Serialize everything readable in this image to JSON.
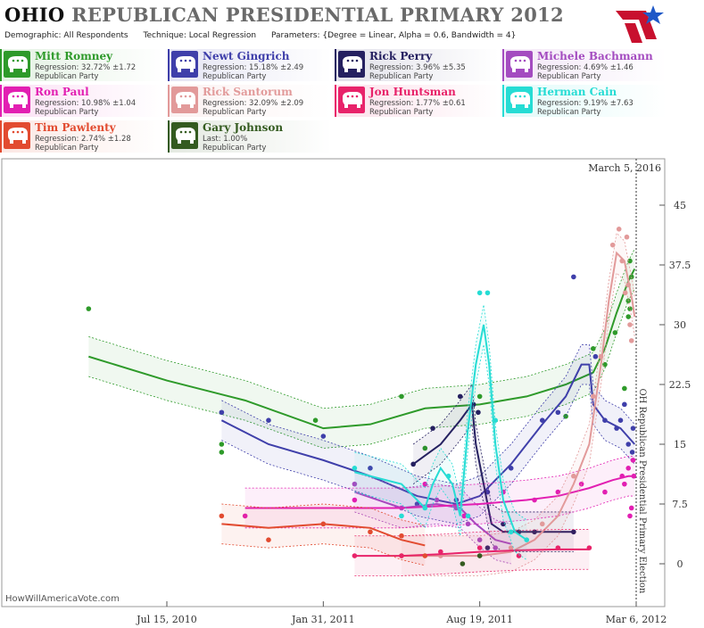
{
  "header": {
    "title_a": "OHIO",
    "title_b": "REPUBLICAN PRESIDENTIAL PRIMARY 2012",
    "demographic": "Demographic: All Respondents",
    "technique": "Technique: Local Regression",
    "parameters": "Parameters: {Degree = Linear, Alpha = 0.6, Bandwidth = 4}",
    "logo_icon": "flag-star-logo"
  },
  "candidates": [
    {
      "name": "Mitt Romney",
      "line1": "Regression: 32.72% ±1.72",
      "line2": "Republican Party",
      "color": "#2e9a2a"
    },
    {
      "name": "Newt Gingrich",
      "line1": "Regression: 15.18% ±2.49",
      "line2": "Republican Party",
      "color": "#3f3faa"
    },
    {
      "name": "Rick Perry",
      "line1": "Regression: 3.96% ±5.35",
      "line2": "Republican Party",
      "color": "#252060"
    },
    {
      "name": "Michele Bachmann",
      "line1": "Regression: 4.69% ±1.46",
      "line2": "Republican Party",
      "color": "#a44cc0"
    },
    {
      "name": "Ron Paul",
      "line1": "Regression: 10.98% ±1.04",
      "line2": "Republican Party",
      "color": "#e21fb2"
    },
    {
      "name": "Rick Santorum",
      "line1": "Regression: 32.09% ±2.09",
      "line2": "Republican Party",
      "color": "#e29a9a"
    },
    {
      "name": "Jon Huntsman",
      "line1": "Regression: 1.77% ±0.61",
      "line2": "Republican Party",
      "color": "#e8236a"
    },
    {
      "name": "Herman Cain",
      "line1": "Regression: 9.19% ±7.63",
      "line2": "Republican Party",
      "color": "#26dcd4"
    },
    {
      "name": "Tim Pawlenty",
      "line1": "Regression: 2.74% ±1.28",
      "line2": "Republican Party",
      "color": "#e24b30"
    },
    {
      "name": "Gary Johnson",
      "line1": "Last: 1.00%",
      "line2": "Republican Party",
      "color": "#345b20"
    }
  ],
  "chart_data": {
    "type": "line",
    "today_label": "March 5, 2016",
    "election_label": "OH Republican Presidential Primary Election",
    "watermark": "HowWillAmericaVote.com",
    "x_ticks": [
      "Jul 15, 2010",
      "Jan 31, 2011",
      "Aug 19, 2011",
      "Mar 6, 2012"
    ],
    "y_ticks": [
      "0",
      "7.5",
      "15",
      "22.5",
      "30",
      "37.5",
      "45"
    ],
    "ylim": [
      -4,
      48
    ],
    "xlim_days": [
      -100,
      610
    ],
    "x_tick_days": [
      0,
      200,
      400,
      600
    ],
    "grid": false,
    "series": [
      {
        "name": "Mitt Romney",
        "color": "#2e9a2a",
        "line": [
          [
            -100,
            26
          ],
          [
            0,
            23
          ],
          [
            100,
            20.5
          ],
          [
            200,
            17
          ],
          [
            260,
            17.5
          ],
          [
            330,
            19.5
          ],
          [
            400,
            20
          ],
          [
            460,
            21
          ],
          [
            510,
            22.5
          ],
          [
            545,
            24
          ],
          [
            560,
            27
          ],
          [
            575,
            31.5
          ],
          [
            590,
            35.5
          ],
          [
            598,
            37
          ]
        ],
        "points": [
          [
            -100,
            32
          ],
          [
            70,
            14
          ],
          [
            70,
            15
          ],
          [
            190,
            18
          ],
          [
            300,
            21
          ],
          [
            330,
            14.5
          ],
          [
            400,
            21
          ],
          [
            510,
            18.5
          ],
          [
            545,
            27
          ],
          [
            560,
            25
          ],
          [
            573,
            29
          ],
          [
            585,
            22
          ],
          [
            590,
            31
          ],
          [
            590,
            33
          ],
          [
            592,
            38
          ],
          [
            592,
            32
          ],
          [
            594,
            36
          ]
        ]
      },
      {
        "name": "Newt Gingrich",
        "color": "#3f3faa",
        "line": [
          [
            70,
            18
          ],
          [
            130,
            15
          ],
          [
            200,
            13
          ],
          [
            260,
            11
          ],
          [
            320,
            8.5
          ],
          [
            370,
            7.5
          ],
          [
            400,
            8.5
          ],
          [
            440,
            12.5
          ],
          [
            480,
            17.5
          ],
          [
            510,
            21
          ],
          [
            530,
            25
          ],
          [
            540,
            25
          ],
          [
            545,
            20
          ],
          [
            560,
            18
          ],
          [
            580,
            17
          ],
          [
            598,
            15
          ]
        ],
        "points": [
          [
            70,
            19
          ],
          [
            130,
            18
          ],
          [
            200,
            16
          ],
          [
            260,
            12
          ],
          [
            320,
            7.5
          ],
          [
            370,
            8
          ],
          [
            410,
            9
          ],
          [
            440,
            12
          ],
          [
            480,
            18
          ],
          [
            500,
            19
          ],
          [
            520,
            36
          ],
          [
            548,
            26
          ],
          [
            560,
            18
          ],
          [
            575,
            17
          ],
          [
            580,
            18
          ],
          [
            585,
            20
          ],
          [
            590,
            15
          ],
          [
            595,
            14
          ],
          [
            596,
            17
          ]
        ]
      },
      {
        "name": "Rick Perry",
        "color": "#252060",
        "line": [
          [
            315,
            12.5
          ],
          [
            350,
            15
          ],
          [
            375,
            18
          ],
          [
            390,
            20
          ],
          [
            395,
            15
          ],
          [
            405,
            10
          ],
          [
            415,
            5
          ],
          [
            430,
            4
          ],
          [
            450,
            4
          ],
          [
            480,
            4
          ],
          [
            520,
            4
          ]
        ],
        "points": [
          [
            315,
            12.5
          ],
          [
            340,
            17
          ],
          [
            375,
            21
          ],
          [
            392,
            20
          ],
          [
            398,
            19
          ],
          [
            410,
            2
          ],
          [
            430,
            5
          ],
          [
            450,
            4
          ],
          [
            470,
            4
          ],
          [
            520,
            4
          ]
        ]
      },
      {
        "name": "Michele Bachmann",
        "color": "#a44cc0",
        "line": [
          [
            240,
            9
          ],
          [
            300,
            7
          ],
          [
            345,
            7.5
          ],
          [
            375,
            7
          ],
          [
            395,
            5
          ],
          [
            420,
            3
          ],
          [
            440,
            2.5
          ]
        ],
        "points": [
          [
            240,
            10
          ],
          [
            300,
            7
          ],
          [
            345,
            8
          ],
          [
            370,
            7
          ],
          [
            385,
            5
          ],
          [
            400,
            3
          ],
          [
            420,
            2
          ]
        ]
      },
      {
        "name": "Ron Paul",
        "color": "#e21fb2",
        "line": [
          [
            100,
            7
          ],
          [
            200,
            7
          ],
          [
            300,
            7
          ],
          [
            400,
            7.5
          ],
          [
            460,
            8
          ],
          [
            500,
            8.5
          ],
          [
            540,
            9.5
          ],
          [
            570,
            10.5
          ],
          [
            590,
            11
          ],
          [
            598,
            11
          ]
        ],
        "points": [
          [
            100,
            6
          ],
          [
            240,
            8
          ],
          [
            330,
            10
          ],
          [
            380,
            6
          ],
          [
            430,
            9
          ],
          [
            470,
            8
          ],
          [
            500,
            9
          ],
          [
            530,
            10
          ],
          [
            560,
            9
          ],
          [
            582,
            11
          ],
          [
            585,
            10
          ],
          [
            590,
            12
          ],
          [
            592,
            6
          ],
          [
            594,
            7
          ],
          [
            596,
            13
          ],
          [
            597,
            11
          ]
        ]
      },
      {
        "name": "Rick Santorum",
        "color": "#e29a9a",
        "line": [
          [
            300,
            1
          ],
          [
            350,
            1
          ],
          [
            400,
            1
          ],
          [
            440,
            1.5
          ],
          [
            470,
            3
          ],
          [
            500,
            6
          ],
          [
            520,
            10
          ],
          [
            540,
            15
          ],
          [
            555,
            25
          ],
          [
            565,
            33
          ],
          [
            575,
            39
          ],
          [
            585,
            38
          ],
          [
            595,
            33
          ],
          [
            598,
            31
          ]
        ],
        "points": [
          [
            300,
            1
          ],
          [
            350,
            1
          ],
          [
            400,
            1
          ],
          [
            440,
            2
          ],
          [
            480,
            5
          ],
          [
            520,
            11
          ],
          [
            545,
            21
          ],
          [
            555,
            26
          ],
          [
            570,
            40
          ],
          [
            578,
            42
          ],
          [
            582,
            38
          ],
          [
            586,
            34
          ],
          [
            588,
            41
          ],
          [
            590,
            35
          ],
          [
            592,
            30
          ],
          [
            594,
            28
          ]
        ]
      },
      {
        "name": "Jon Huntsman",
        "color": "#e8236a",
        "line": [
          [
            240,
            1
          ],
          [
            300,
            1
          ],
          [
            350,
            1.2
          ],
          [
            400,
            1.5
          ],
          [
            450,
            1.7
          ],
          [
            500,
            1.8
          ],
          [
            540,
            1.8
          ]
        ],
        "points": [
          [
            240,
            1
          ],
          [
            300,
            1
          ],
          [
            350,
            1.5
          ],
          [
            400,
            2
          ],
          [
            450,
            1
          ],
          [
            500,
            2
          ],
          [
            540,
            2
          ]
        ]
      },
      {
        "name": "Herman Cain",
        "color": "#26dcd4",
        "line": [
          [
            240,
            11.5
          ],
          [
            300,
            10
          ],
          [
            330,
            7
          ],
          [
            340,
            10
          ],
          [
            350,
            12
          ],
          [
            365,
            10
          ],
          [
            375,
            6
          ],
          [
            385,
            17
          ],
          [
            395,
            25
          ],
          [
            405,
            30
          ],
          [
            412,
            25
          ],
          [
            420,
            15
          ],
          [
            430,
            8
          ],
          [
            445,
            4
          ],
          [
            460,
            3
          ]
        ],
        "points": [
          [
            240,
            12
          ],
          [
            300,
            6
          ],
          [
            330,
            7
          ],
          [
            360,
            11
          ],
          [
            385,
            6
          ],
          [
            400,
            34
          ],
          [
            410,
            34
          ],
          [
            420,
            18
          ],
          [
            440,
            4
          ],
          [
            460,
            3
          ]
        ]
      },
      {
        "name": "Tim Pawlenty",
        "color": "#e24b30",
        "line": [
          [
            70,
            5
          ],
          [
            130,
            4.5
          ],
          [
            200,
            5
          ],
          [
            260,
            4.5
          ],
          [
            300,
            3
          ],
          [
            330,
            2.3
          ]
        ],
        "points": [
          [
            70,
            6
          ],
          [
            130,
            3
          ],
          [
            200,
            5
          ],
          [
            260,
            4
          ],
          [
            300,
            3.5
          ],
          [
            330,
            1
          ]
        ]
      },
      {
        "name": "Gary Johnson",
        "color": "#345b20",
        "line": [],
        "points": [
          [
            378,
            0
          ],
          [
            400,
            1
          ]
        ]
      }
    ]
  }
}
